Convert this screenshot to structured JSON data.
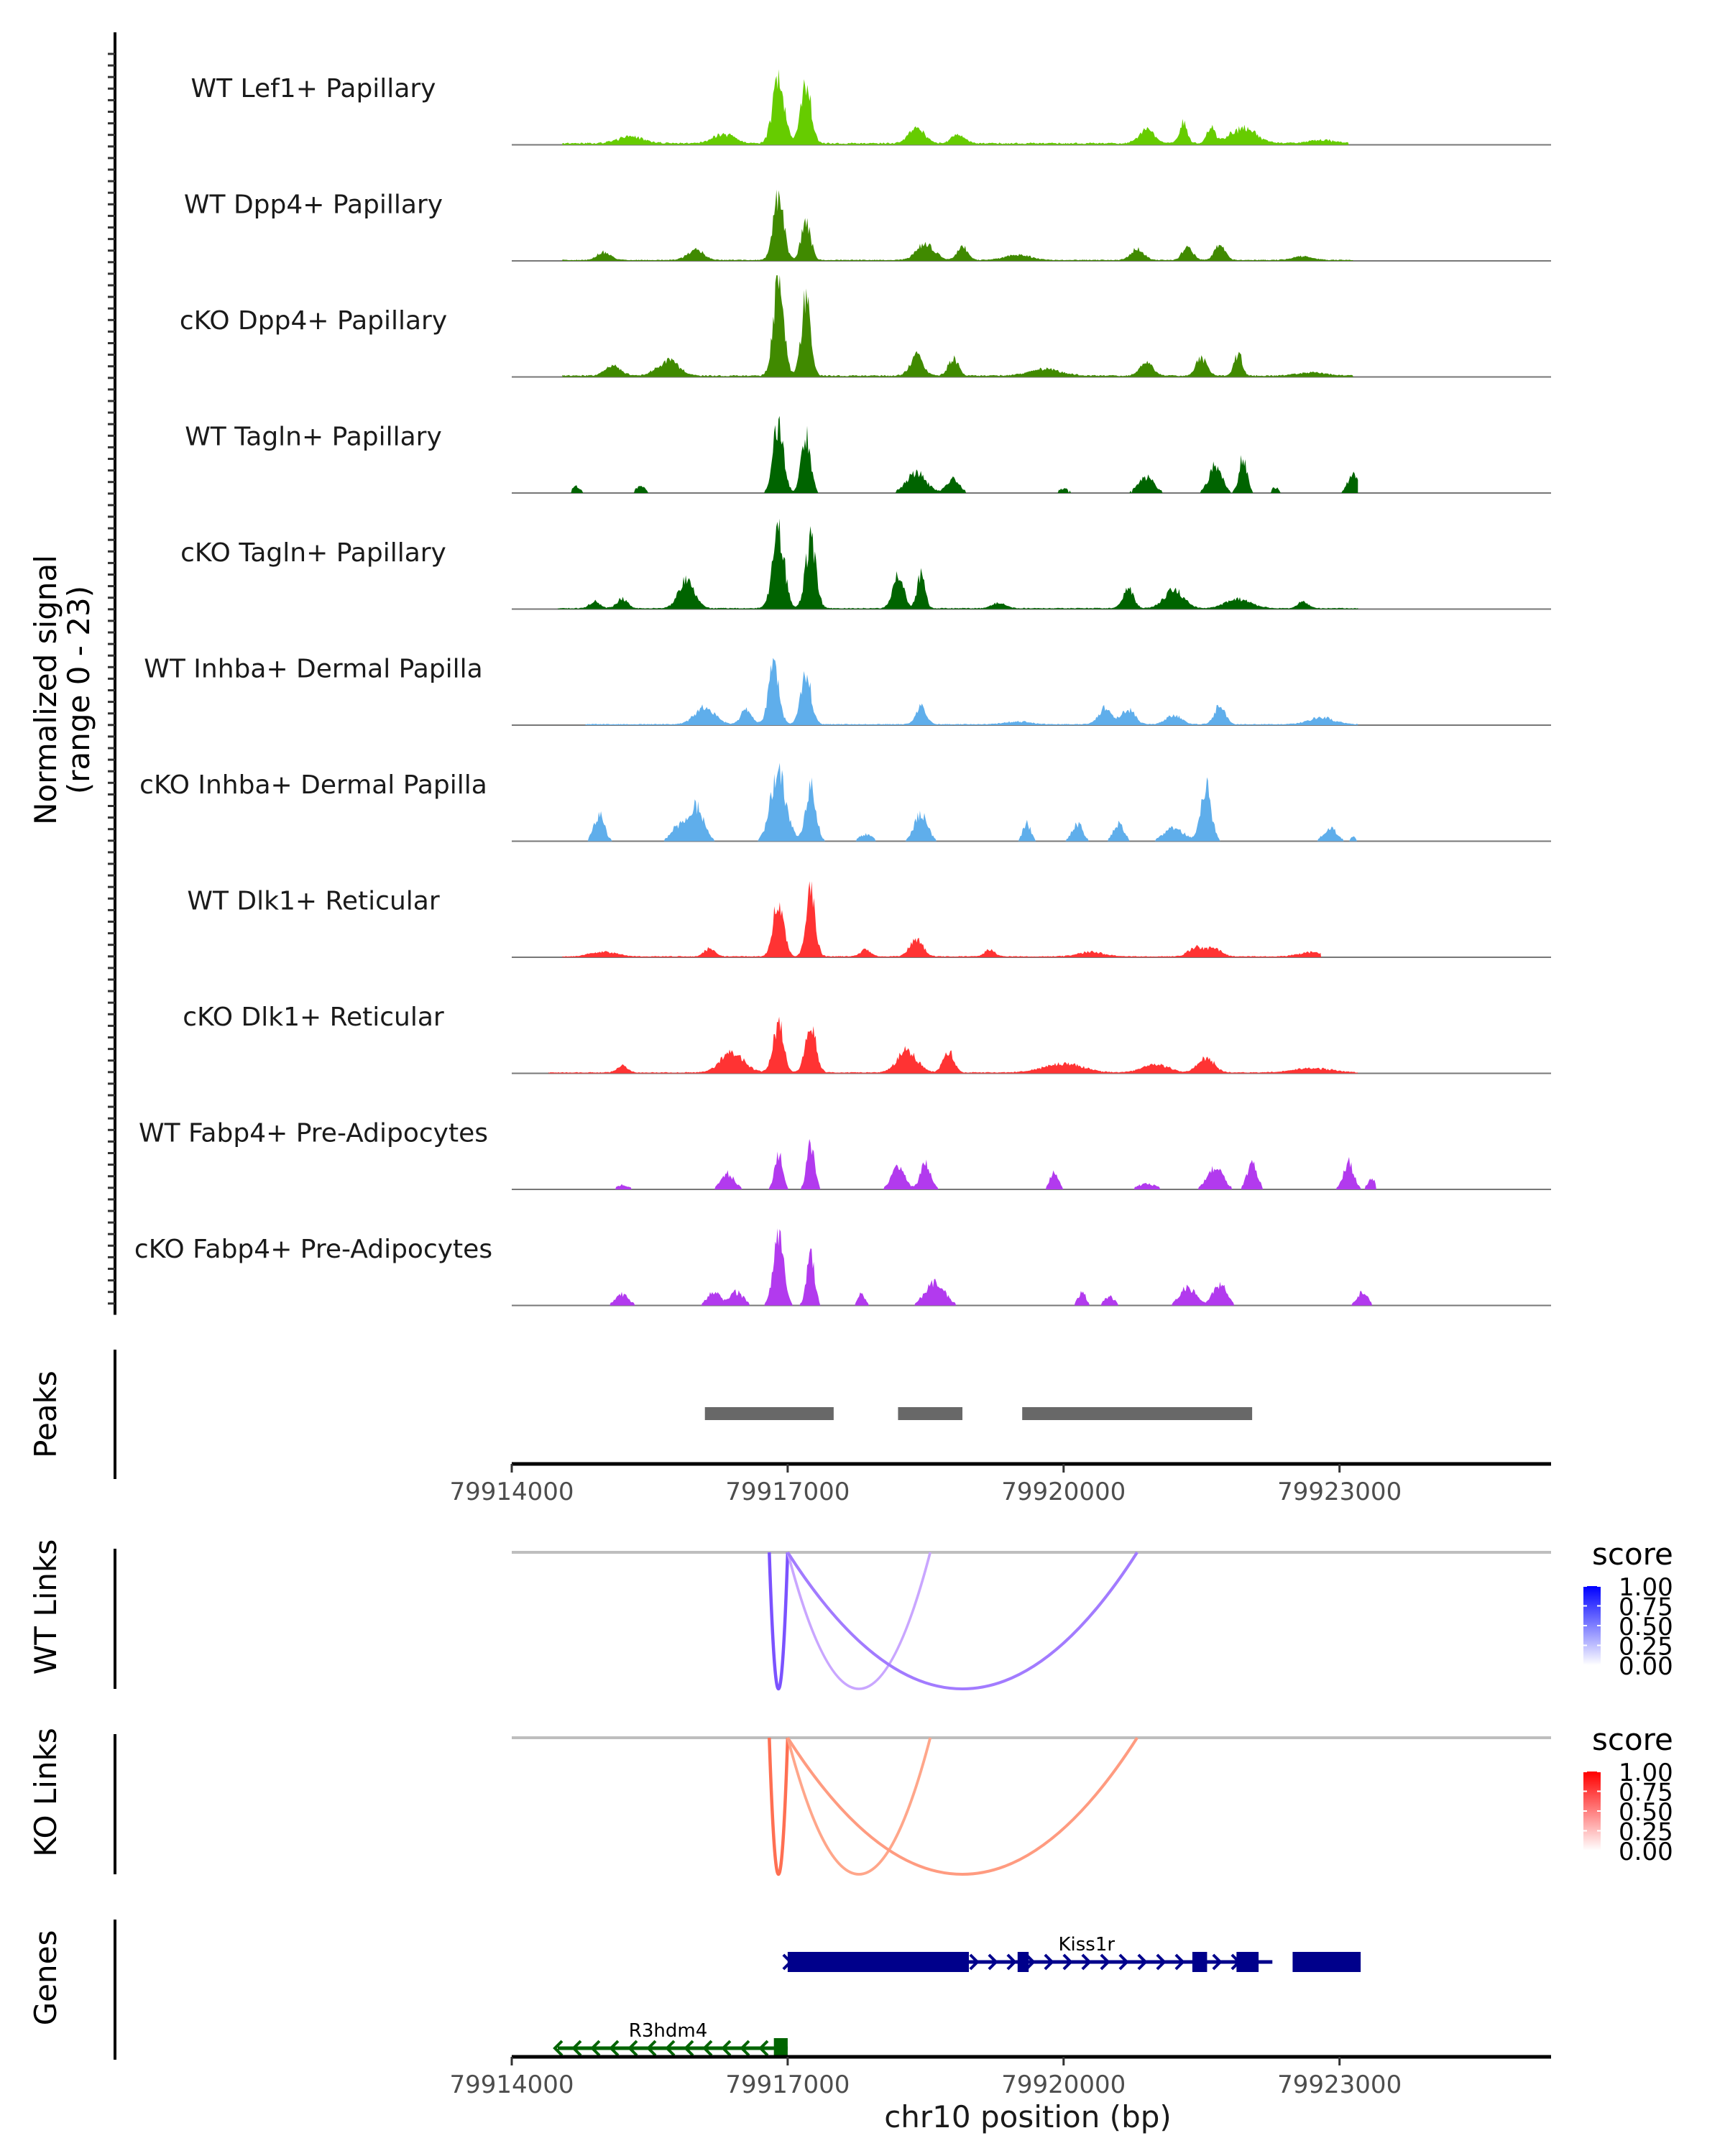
{
  "chart_data": {
    "type": "area",
    "title": "",
    "region": {
      "chrom": "chr10",
      "start": 79914000,
      "end": 79925300
    },
    "coverage": {
      "ylabel_line1": "Normalized signal",
      "ylabel_line2": "(range 0 - 23)",
      "ylim": [
        0,
        23
      ],
      "tracks": [
        {
          "label": "WT Lef1+ Papillary",
          "color": "#66CC00",
          "peaks": [
            [
              79916900,
              14,
              90
            ],
            [
              79917200,
              13,
              80
            ],
            [
              79918400,
              3.5,
              120
            ],
            [
              79918850,
              2,
              100
            ],
            [
              79920900,
              3,
              120
            ],
            [
              79921300,
              4.5,
              60
            ],
            [
              79921600,
              3.8,
              60
            ],
            [
              79921950,
              3.3,
              200
            ],
            [
              79915300,
              1.5,
              200
            ],
            [
              79916300,
              2.2,
              160
            ],
            [
              79922800,
              0.8,
              200
            ]
          ],
          "base": 0.35,
          "range": [
            79914550,
            79923100
          ]
        },
        {
          "label": "WT Dpp4+ Papillary",
          "color": "#408A00",
          "peaks": [
            [
              79916900,
              14,
              80
            ],
            [
              79917200,
              9,
              70
            ],
            [
              79918500,
              3.5,
              140
            ],
            [
              79918900,
              3,
              80
            ],
            [
              79920800,
              2.5,
              100
            ],
            [
              79921350,
              3,
              80
            ],
            [
              79921700,
              3.5,
              80
            ],
            [
              79915000,
              1.8,
              100
            ],
            [
              79916000,
              2.5,
              120
            ],
            [
              79919500,
              1.2,
              200
            ],
            [
              79922600,
              0.8,
              150
            ]
          ],
          "base": 0.2,
          "range": [
            79914550,
            79923150
          ]
        },
        {
          "label": "cKO Dpp4+ Papillary",
          "color": "#408A00",
          "peaks": [
            [
              79916900,
              21,
              80
            ],
            [
              79917200,
              18,
              70
            ],
            [
              79918400,
              4.5,
              100
            ],
            [
              79918800,
              3.8,
              80
            ],
            [
              79915700,
              3.5,
              160
            ],
            [
              79915100,
              2.2,
              120
            ],
            [
              79920900,
              2.8,
              100
            ],
            [
              79921500,
              4,
              80
            ],
            [
              79921900,
              5,
              60
            ],
            [
              79919800,
              1.5,
              250
            ],
            [
              79922700,
              0.8,
              200
            ]
          ],
          "base": 0.3,
          "range": [
            79914550,
            79923150
          ]
        },
        {
          "label": "WT Tagln+ Papillary",
          "color": "#006400",
          "peaks": [
            [
              79916900,
              16,
              80
            ],
            [
              79917200,
              13,
              70
            ],
            [
              79918400,
              4.5,
              150
            ],
            [
              79918800,
              3,
              100
            ],
            [
              79920900,
              3.5,
              120
            ],
            [
              79921650,
              6,
              100
            ],
            [
              79921950,
              8,
              60
            ],
            [
              79914700,
              1.5,
              60
            ],
            [
              79915400,
              1.8,
              60
            ],
            [
              79923150,
              4.5,
              80
            ],
            [
              79920000,
              1,
              80
            ],
            [
              79922300,
              1.2,
              60
            ]
          ],
          "base": 0.0,
          "range": [
            79914500,
            79923200
          ]
        },
        {
          "label": "cKO Tagln+ Papillary",
          "color": "#006400",
          "peaks": [
            [
              79916900,
              17,
              90
            ],
            [
              79917250,
              15,
              80
            ],
            [
              79915900,
              6.5,
              120
            ],
            [
              79918200,
              8,
              80
            ],
            [
              79918450,
              7.5,
              60
            ],
            [
              79920700,
              4.5,
              80
            ],
            [
              79921200,
              4,
              150
            ],
            [
              79915200,
              2.2,
              80
            ],
            [
              79914900,
              1.5,
              80
            ],
            [
              79921900,
              2,
              200
            ],
            [
              79922600,
              1.5,
              80
            ],
            [
              79919300,
              1.2,
              100
            ]
          ],
          "base": 0.2,
          "range": [
            79914500,
            79923200
          ]
        },
        {
          "label": "WT Inhba+ Dermal Papilla",
          "color": "#5FAEEB",
          "peaks": [
            [
              79916850,
              13,
              80
            ],
            [
              79917200,
              11,
              80
            ],
            [
              79916100,
              4,
              150
            ],
            [
              79916550,
              3.5,
              80
            ],
            [
              79918450,
              4,
              80
            ],
            [
              79920450,
              3.5,
              100
            ],
            [
              79920700,
              3.5,
              100
            ],
            [
              79921700,
              4.5,
              80
            ],
            [
              79921200,
              2,
              120
            ],
            [
              79922800,
              1.5,
              200
            ],
            [
              79919500,
              0.6,
              200
            ]
          ],
          "base": 0.2,
          "range": [
            79914800,
            79923200
          ]
        },
        {
          "label": "cKO Inhba+ Dermal Papilla",
          "color": "#5FAEEB",
          "peaks": [
            [
              79916900,
              15,
              120
            ],
            [
              79917250,
              12,
              80
            ],
            [
              79916000,
              8,
              120
            ],
            [
              79914950,
              6,
              80
            ],
            [
              79918450,
              6,
              100
            ],
            [
              79921550,
              12,
              80
            ],
            [
              79921200,
              3,
              150
            ],
            [
              79920600,
              4,
              80
            ],
            [
              79920150,
              4,
              80
            ],
            [
              79919600,
              4,
              60
            ],
            [
              79922900,
              3,
              100
            ],
            [
              79915800,
              3,
              100
            ],
            [
              79917850,
              1.5,
              100
            ],
            [
              79923150,
              1,
              40
            ]
          ],
          "base": 0.0,
          "range": [
            79914550,
            79923200
          ]
        },
        {
          "label": "WT Dlk1+ Reticular",
          "color": "#FF3333",
          "peaks": [
            [
              79916900,
              13,
              80
            ],
            [
              79917250,
              14,
              70
            ],
            [
              79918400,
              4,
              100
            ],
            [
              79917850,
              1.6,
              80
            ],
            [
              79916150,
              1.8,
              80
            ],
            [
              79919200,
              1.5,
              80
            ],
            [
              79921450,
              2.2,
              120
            ],
            [
              79921650,
              1.8,
              100
            ],
            [
              79920300,
              1,
              200
            ],
            [
              79915000,
              1,
              200
            ],
            [
              79922700,
              1,
              200
            ]
          ],
          "base": 0.2,
          "range": [
            79914550,
            79922800
          ]
        },
        {
          "label": "cKO Dlk1+ Reticular",
          "color": "#FF3333",
          "peaks": [
            [
              79916900,
              11,
              80
            ],
            [
              79917250,
              11,
              80
            ],
            [
              79916400,
              4.5,
              180
            ],
            [
              79918300,
              5,
              150
            ],
            [
              79918750,
              5,
              80
            ],
            [
              79915200,
              1.5,
              80
            ],
            [
              79921550,
              3.5,
              120
            ],
            [
              79920000,
              2,
              300
            ],
            [
              79921000,
              1.8,
              200
            ],
            [
              79922700,
              1,
              300
            ]
          ],
          "base": 0.2,
          "range": [
            79914400,
            79923200
          ]
        },
        {
          "label": "WT Fabp4+ Pre-Adipocytes",
          "color": "#B23AEE",
          "peaks": [
            [
              79916900,
              8,
              60
            ],
            [
              79917250,
              10,
              60
            ],
            [
              79918200,
              5,
              100
            ],
            [
              79918500,
              6,
              80
            ],
            [
              79919900,
              4.5,
              60
            ],
            [
              79921650,
              5,
              120
            ],
            [
              79922050,
              5.5,
              80
            ],
            [
              79916350,
              3.5,
              100
            ],
            [
              79923100,
              6,
              80
            ],
            [
              79923350,
              2.5,
              60
            ],
            [
              79915200,
              1,
              100
            ],
            [
              79920900,
              1.2,
              150
            ]
          ],
          "base": 0.0,
          "range": [
            79914500,
            79923400
          ]
        },
        {
          "label": "cKO Fabp4+ Pre-Adipocytes",
          "color": "#B23AEE",
          "peaks": [
            [
              79916900,
              15,
              80
            ],
            [
              79917250,
              12,
              60
            ],
            [
              79918600,
              5,
              150
            ],
            [
              79915200,
              2.5,
              100
            ],
            [
              79916450,
              3,
              100
            ],
            [
              79916200,
              3,
              100
            ],
            [
              79921350,
              4,
              120
            ],
            [
              79921700,
              5,
              100
            ],
            [
              79920200,
              3,
              60
            ],
            [
              79920500,
              2,
              80
            ],
            [
              79923250,
              3,
              80
            ],
            [
              79917800,
              2.5,
              60
            ]
          ],
          "base": 0.0,
          "range": [
            79914500,
            79923400
          ]
        }
      ]
    },
    "peaks_track": {
      "label": "Peaks",
      "color": "#686868",
      "ranges": [
        [
          79916100,
          79917500
        ],
        [
          79918200,
          79918900
        ],
        [
          79919550,
          79922050
        ]
      ]
    },
    "x_axis_mid": {
      "ticks": [
        79914000,
        79917000,
        79920000,
        79923000
      ],
      "tick_labels": [
        "79914000",
        "79917000",
        "79920000",
        "79923000"
      ]
    },
    "links": [
      {
        "label": "WT Links",
        "legend_title": "score",
        "scale_high": "#0000FF",
        "links": [
          {
            "start": 79916800,
            "end": 79917000,
            "score": 0.75,
            "color": "#7B52FF"
          },
          {
            "start": 79917000,
            "end": 79918550,
            "score": 0.3,
            "color": "#C9A6FF"
          },
          {
            "start": 79917000,
            "end": 79920800,
            "score": 0.55,
            "color": "#A27BFF"
          }
        ]
      },
      {
        "label": "KO Links",
        "legend_title": "score",
        "scale_high": "#FF0000",
        "links": [
          {
            "start": 79916800,
            "end": 79917000,
            "score": 0.75,
            "color": "#FF6F52"
          },
          {
            "start": 79917000,
            "end": 79918550,
            "score": 0.4,
            "color": "#FFA68A"
          },
          {
            "start": 79917000,
            "end": 79920800,
            "score": 0.5,
            "color": "#FF9B80"
          }
        ]
      }
    ],
    "legend_ticks": [
      "1.00",
      "0.75",
      "0.50",
      "0.25",
      "0.00"
    ],
    "genes": {
      "label": "Genes",
      "items": [
        {
          "name": "Kiss1r",
          "strand": "+",
          "color": "#00008B",
          "start": 79917000,
          "end": 79922270,
          "exons": [
            [
              79917000,
              79918970
            ],
            [
              79919500,
              79919620
            ],
            [
              79921400,
              79921560
            ],
            [
              79921880,
              79922120
            ],
            [
              79922490,
              79923230
            ]
          ]
        },
        {
          "name": "R3hdm4",
          "strand": "-",
          "color": "#006400",
          "start": 79914500,
          "end": 79917000,
          "exons": [
            [
              79916850,
              79917000
            ]
          ]
        }
      ]
    },
    "x_axis_bottom": {
      "ticks": [
        79914000,
        79917000,
        79920000,
        79923000
      ],
      "tick_labels": [
        "79914000",
        "79917000",
        "79920000",
        "79923000"
      ],
      "xlabel": "chr10 position (bp)"
    }
  }
}
